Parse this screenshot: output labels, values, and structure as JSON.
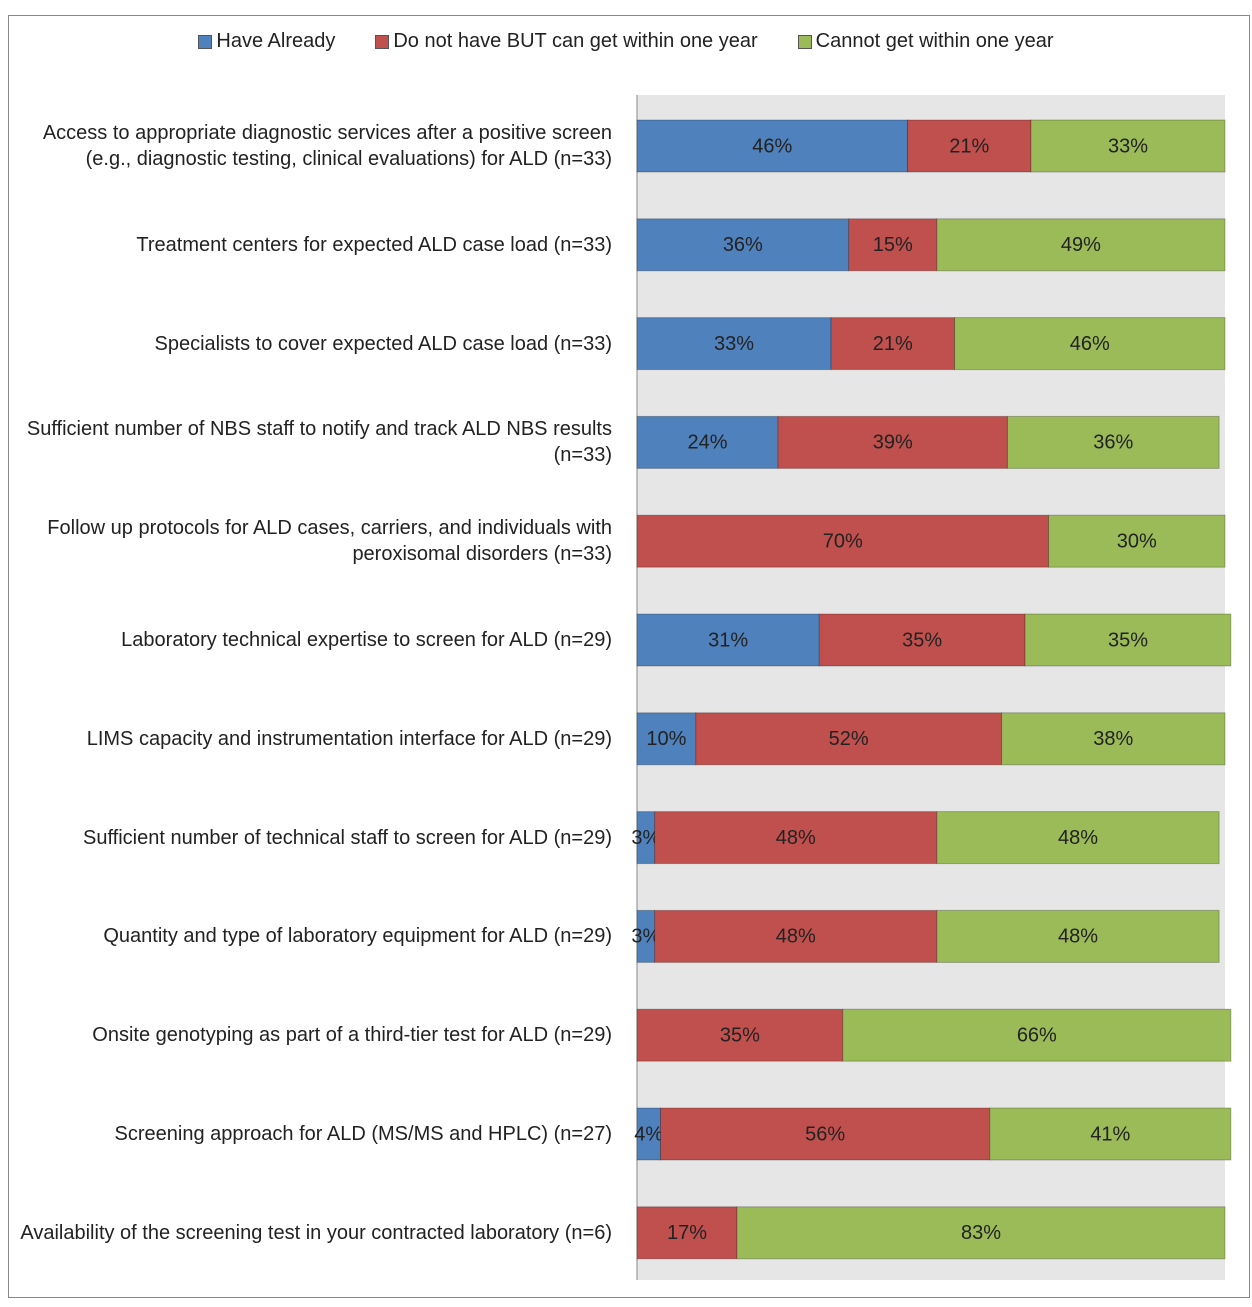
{
  "chart_data": {
    "type": "stacked-bar-horizontal",
    "categories": [
      "Access to appropriate diagnostic services after a positive screen (e.g., diagnostic testing, clinical evaluations) for ALD (n=33)",
      "Treatment centers for expected ALD case load (n=33)",
      "Specialists to cover expected ALD case load (n=33)",
      "Sufficient number of NBS staff to notify and track ALD NBS results (n=33)",
      "Follow up protocols for ALD cases, carriers, and individuals with peroxisomal disorders (n=33)",
      "Laboratory technical expertise to screen for ALD (n=29)",
      "LIMS capacity and instrumentation interface for ALD (n=29)",
      "Sufficient number of technical staff to screen for ALD (n=29)",
      "Quantity and type of laboratory equipment for ALD (n=29)",
      "Onsite genotyping as part of a third-tier test for ALD (n=29)",
      "Screening approach for ALD (MS/MS and HPLC) (n=27)",
      "Availability of the screening test in your contracted laboratory (n=6)"
    ],
    "series": [
      {
        "name": "Have Already",
        "color": "#4f81bd",
        "values": [
          46,
          36,
          33,
          24,
          0,
          31,
          10,
          3,
          3,
          0,
          4,
          0
        ],
        "value_labels": [
          "46%",
          "36%",
          "33%",
          "24%",
          null,
          "31%",
          "10%",
          "3%",
          "3%",
          null,
          "4%",
          null
        ]
      },
      {
        "name": "Do not have BUT can get within one year",
        "color": "#c0504d",
        "values": [
          21,
          15,
          21,
          39,
          70,
          35,
          52,
          48,
          48,
          35,
          56,
          17
        ],
        "value_labels": [
          "21%",
          "15%",
          "21%",
          "39%",
          "70%",
          "35%",
          "52%",
          "48%",
          "48%",
          "35%",
          "56%",
          "17%"
        ]
      },
      {
        "name": "Cannot get within one year",
        "color": "#9bbb59",
        "values": [
          33,
          49,
          46,
          36,
          30,
          35,
          38,
          48,
          48,
          66,
          41,
          83
        ],
        "value_labels": [
          "33%",
          "49%",
          "46%",
          "36%",
          "30%",
          "35%",
          "38%",
          "48%",
          "48%",
          "66%",
          "41%",
          "83%"
        ]
      }
    ],
    "xlim": [
      0,
      100
    ]
  }
}
